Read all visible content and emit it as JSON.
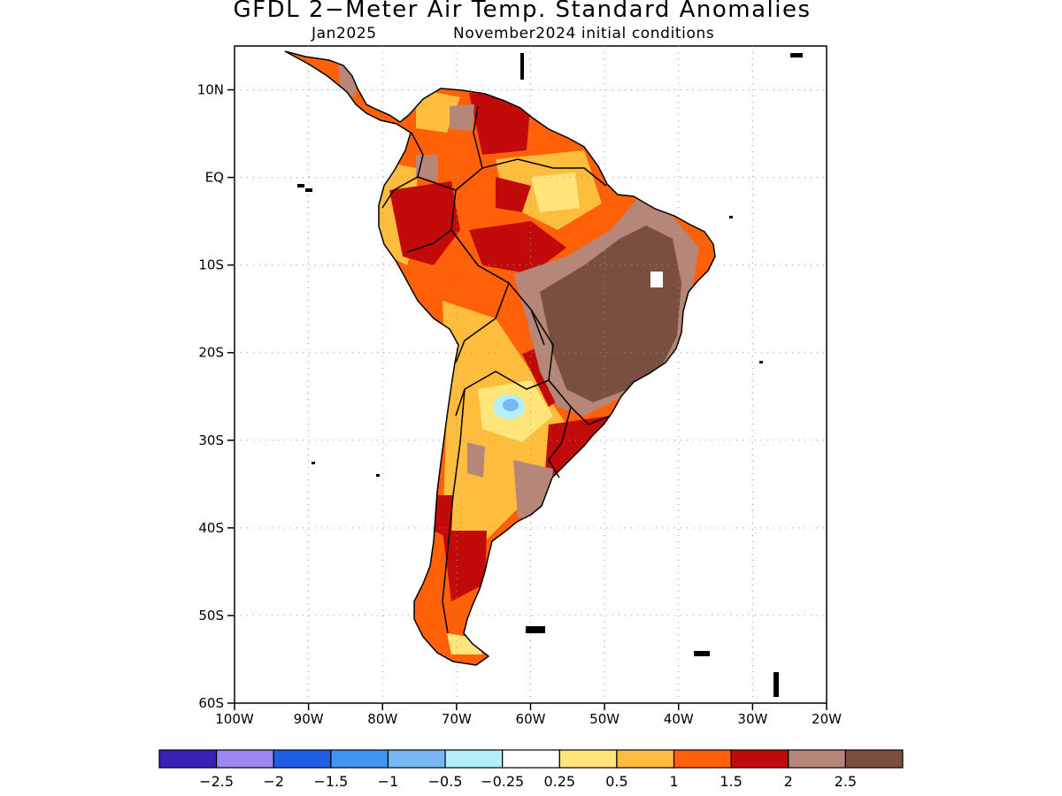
{
  "title": "GFDL 2−Meter Air Temp. Standard Anomalies",
  "subtitle_left": "Jan2025",
  "subtitle_right": "November2024 initial conditions",
  "lat_ticks": [
    {
      "value": 10,
      "label": "10N"
    },
    {
      "value": 0,
      "label": "EQ"
    },
    {
      "value": -10,
      "label": "10S"
    },
    {
      "value": -20,
      "label": "20S"
    },
    {
      "value": -30,
      "label": "30S"
    },
    {
      "value": -40,
      "label": "40S"
    },
    {
      "value": -50,
      "label": "50S"
    },
    {
      "value": -60,
      "label": "60S"
    }
  ],
  "lon_ticks": [
    {
      "value": -100,
      "label": "100W"
    },
    {
      "value": -90,
      "label": "90W"
    },
    {
      "value": -80,
      "label": "80W"
    },
    {
      "value": -70,
      "label": "70W"
    },
    {
      "value": -60,
      "label": "60W"
    },
    {
      "value": -50,
      "label": "50W"
    },
    {
      "value": -40,
      "label": "40W"
    },
    {
      "value": -30,
      "label": "30W"
    },
    {
      "value": -20,
      "label": "20W"
    }
  ],
  "extent": {
    "lon": [
      -100,
      -20
    ],
    "lat": [
      -60,
      15
    ]
  },
  "colorbar": {
    "colors": [
      "#3a1fb8",
      "#9c86f4",
      "#1f5fe6",
      "#3e96f2",
      "#78b7f6",
      "#b4eef8",
      "#ffffff",
      "#ffe57a",
      "#ffbd3d",
      "#ff6008",
      "#c20a0a",
      "#b68778",
      "#7a4f40"
    ],
    "labels": [
      "−2.5",
      "−2",
      "−1.5",
      "−1",
      "−0.5",
      "−0.25",
      "0.25",
      "0.5",
      "1",
      "1.5",
      "2",
      "2.5"
    ]
  },
  "colors": {
    "anomaly_0_5": "#ffe57a",
    "anomaly_1": "#ffbd3d",
    "anomaly_1_5": "#ff6008",
    "anomaly_2": "#c20a0a",
    "anomaly_2_5": "#b68778",
    "anomaly_3": "#7a4f40",
    "anomaly_neg_0_5": "#78b7f6",
    "anomaly_neg_0_25": "#b4eef8"
  }
}
